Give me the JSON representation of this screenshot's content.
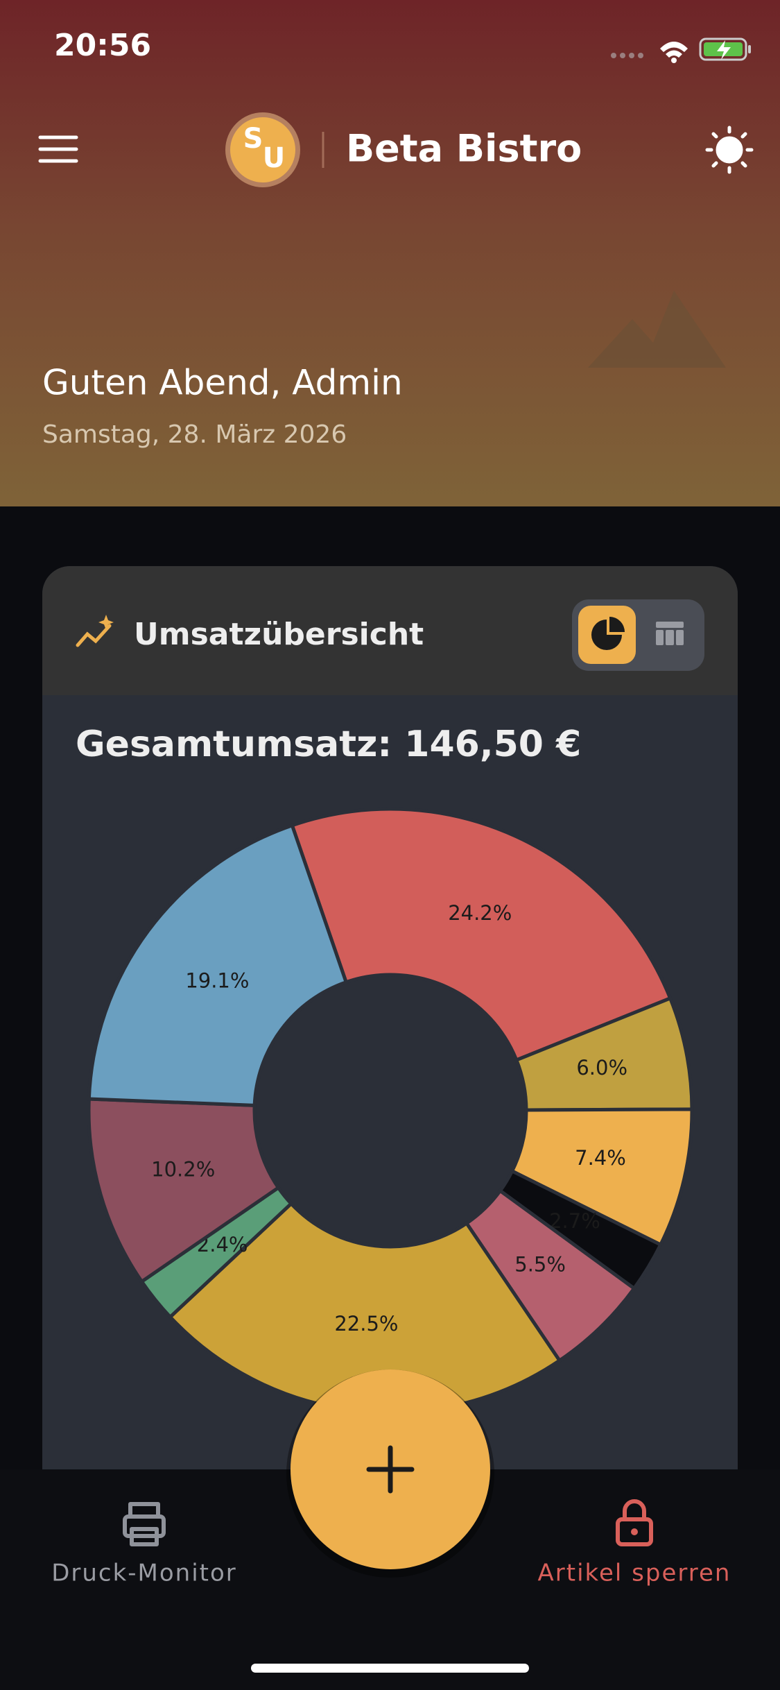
{
  "status_bar": {
    "time": "20:56"
  },
  "header": {
    "logo_letters": [
      "S",
      "U"
    ],
    "title": "Beta Bistro",
    "greeting": "Guten Abend, Admin",
    "date": "Samstag, 28. März 2026"
  },
  "card": {
    "title": "Umsatzübersicht",
    "total": "Gesamtumsatz: 146,50 €"
  },
  "chart_data": {
    "type": "donut",
    "values": [
      24.2,
      6.0,
      7.4,
      2.7,
      5.5,
      22.5,
      2.4,
      10.2,
      19.1
    ],
    "value_labels": [
      "24.2%",
      "6.0%",
      "7.4%",
      "2.7%",
      "5.5%",
      "22.5%",
      "2.4%",
      "10.2%",
      "19.1%"
    ],
    "colors": [
      "#d25e5a",
      "#c0a040",
      "#eeb04e",
      "#0b0c10",
      "#b5606e",
      "#cca238",
      "#5a9e78",
      "#8c4f5e",
      "#6a9fc0"
    ]
  },
  "nav": {
    "left": "Druck-Monitor",
    "right": "Artikel sperren"
  }
}
